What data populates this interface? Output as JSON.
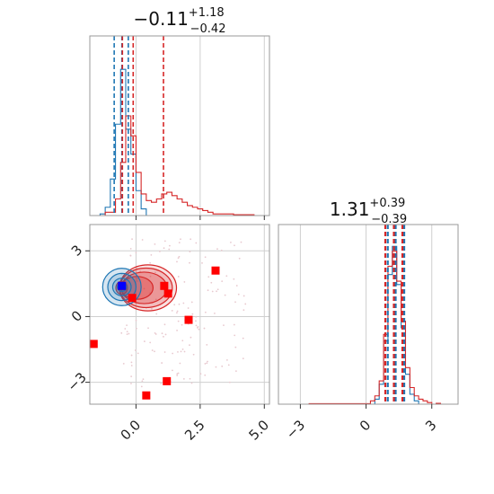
{
  "chart_data": [
    {
      "type": "histogram",
      "panel": "top-left",
      "title": {
        "main": "−0.11",
        "sup": "+1.18",
        "sub": "−0.42"
      },
      "xlim": [
        -1.8,
        5.2
      ],
      "grid": true,
      "series": [
        {
          "name": "",
          "color": "#1f77b4",
          "step_x": [
            -1.6,
            -1.4,
            -1.2,
            -1.0,
            -0.8,
            -0.6,
            -0.4,
            -0.2,
            0.0,
            0.2,
            0.4
          ],
          "step_y": [
            0.0,
            0.01,
            0.05,
            0.22,
            0.55,
            0.88,
            0.52,
            0.37,
            0.15,
            0.04,
            0.0
          ],
          "quantiles": [
            -0.85,
            -0.55,
            -0.3
          ]
        },
        {
          "name": "",
          "color": "#d62728",
          "step_x": [
            -1.6,
            -1.2,
            -0.8,
            -0.6,
            -0.4,
            -0.2,
            0.0,
            0.2,
            0.4,
            0.6,
            0.8,
            1.0,
            1.2,
            1.4,
            1.6,
            1.8,
            2.0,
            2.2,
            2.4,
            2.6,
            2.8,
            3.0,
            3.4,
            3.8,
            4.2,
            4.6,
            5.0
          ],
          "step_y": [
            0.0,
            0.02,
            0.1,
            0.32,
            0.6,
            0.48,
            0.26,
            0.13,
            0.09,
            0.08,
            0.1,
            0.13,
            0.14,
            0.12,
            0.1,
            0.08,
            0.06,
            0.05,
            0.04,
            0.03,
            0.02,
            0.01,
            0.01,
            0.005,
            0.005,
            0.0,
            0.0
          ],
          "quantiles": [
            -0.53,
            -0.11,
            1.07
          ]
        }
      ]
    },
    {
      "type": "contour-scatter",
      "panel": "bottom-left",
      "xlim": [
        -1.8,
        5.2
      ],
      "ylim": [
        -4.0,
        4.2
      ],
      "xticks": [
        0.0,
        2.5,
        5.0
      ],
      "xtick_labels": [
        "0.0",
        "2.5",
        "5.0"
      ],
      "yticks": [
        -3,
        0,
        3
      ],
      "ytick_labels": [
        "−3",
        "0",
        "3"
      ],
      "grid": true,
      "blue_peak": {
        "x": -0.55,
        "y": 1.35
      },
      "red_peak": {
        "x": -0.11,
        "y": 1.31
      },
      "red_markers": [
        {
          "x": -0.55,
          "y": 1.4
        },
        {
          "x": -0.15,
          "y": 0.85
        },
        {
          "x": 1.1,
          "y": 1.4
        },
        {
          "x": 1.25,
          "y": 1.05
        },
        {
          "x": 3.1,
          "y": 2.1
        },
        {
          "x": 2.05,
          "y": -0.15
        },
        {
          "x": -1.65,
          "y": -1.25
        },
        {
          "x": 1.2,
          "y": -2.95
        },
        {
          "x": 0.4,
          "y": -3.6
        }
      ],
      "blue_markers": [
        {
          "x": -0.55,
          "y": 1.4
        }
      ]
    },
    {
      "type": "histogram",
      "panel": "bottom-right",
      "title": {
        "main": "1.31",
        "sup": "+0.39",
        "sub": "−0.39"
      },
      "xlim": [
        -4.0,
        4.2
      ],
      "xticks": [
        -3,
        0,
        3
      ],
      "xtick_labels": [
        "−3",
        "0",
        "3"
      ],
      "grid": true,
      "series": [
        {
          "name": "",
          "color": "#1f77b4",
          "step_x": [
            0.2,
            0.4,
            0.6,
            0.8,
            1.0,
            1.2,
            1.4,
            1.6,
            1.8,
            2.0,
            2.2,
            2.4,
            2.6
          ],
          "step_y": [
            0.0,
            0.03,
            0.12,
            0.38,
            0.78,
            0.95,
            0.72,
            0.46,
            0.18,
            0.06,
            0.02,
            0.0,
            0.0
          ],
          "quantiles": [
            0.95,
            1.31,
            1.7
          ]
        },
        {
          "name": "",
          "color": "#d62728",
          "step_x": [
            -3.8,
            -2.6,
            -1.4,
            -0.2,
            0.2,
            0.4,
            0.6,
            0.8,
            1.0,
            1.2,
            1.4,
            1.6,
            1.8,
            2.0,
            2.2,
            2.4,
            2.6,
            2.8,
            3.0,
            3.2,
            3.4
          ],
          "step_y": [
            0.0,
            0.003,
            0.003,
            0.003,
            0.02,
            0.05,
            0.14,
            0.42,
            0.83,
            0.92,
            0.74,
            0.5,
            0.22,
            0.1,
            0.05,
            0.03,
            0.02,
            0.01,
            0.0,
            0.005,
            0.0
          ],
          "quantiles": [
            0.92,
            1.31,
            1.7
          ]
        }
      ]
    }
  ]
}
